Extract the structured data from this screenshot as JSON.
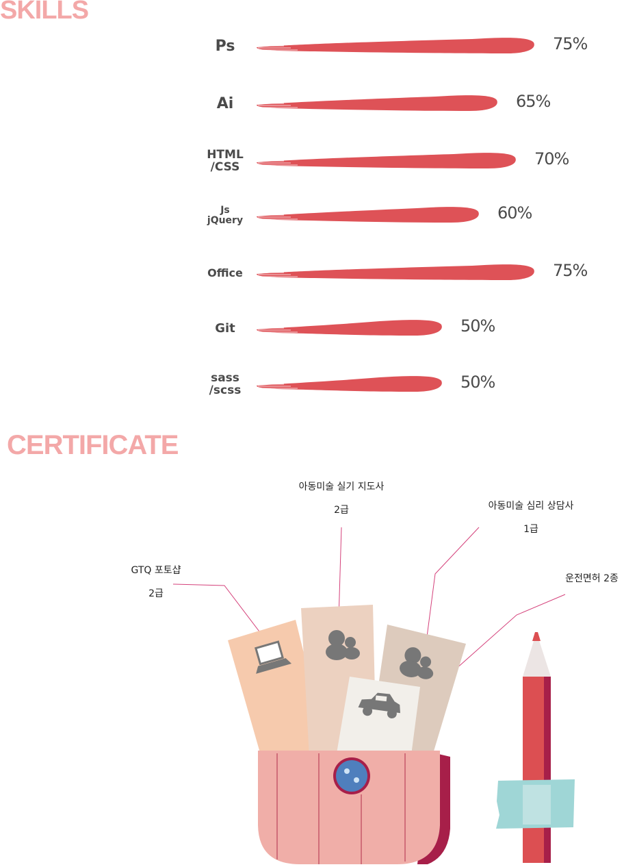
{
  "skills": {
    "title": "SKILLS",
    "items": [
      {
        "name_lines": [
          "Ps"
        ],
        "percent_label": "75%",
        "level": 0.75
      },
      {
        "name_lines": [
          "Ai"
        ],
        "percent_label": "65%",
        "level": 0.65
      },
      {
        "name_lines": [
          "HTML",
          "/CSS"
        ],
        "percent_label": "70%",
        "level": 0.7
      },
      {
        "name_lines": [
          "Js",
          "jQuery"
        ],
        "percent_label": "60%",
        "level": 0.6
      },
      {
        "name_lines": [
          "Office"
        ],
        "percent_label": "75%",
        "level": 0.75
      },
      {
        "name_lines": [
          "Git"
        ],
        "percent_label": "50%",
        "level": 0.5
      },
      {
        "name_lines": [
          "sass",
          "/scss"
        ],
        "percent_label": "50%",
        "level": 0.5
      }
    ]
  },
  "certificate": {
    "title": "CERTIFICATE",
    "items": [
      {
        "lines": [
          "GTQ 포토샵",
          "2급"
        ],
        "card_icon": "laptop-icon"
      },
      {
        "lines": [
          "아동미술 실기 지도사",
          "2급"
        ],
        "card_icon": "people-icon"
      },
      {
        "lines": [
          "아동미술 심리 상담사",
          "1급"
        ],
        "card_icon": "people-icon"
      },
      {
        "lines": [
          "운전면허 2종"
        ],
        "card_icon": "car-icon"
      }
    ]
  },
  "colors": {
    "title": "#f3a8a8",
    "bar": "#de5257",
    "text": "#4a4a4a",
    "leader_line": "#d4407a",
    "pocket": "#f0aea8",
    "pocket_side": "#a71f49",
    "button": "#4f7fbd",
    "pencil": "#dc4f52",
    "tape": "#9fd6d6"
  }
}
